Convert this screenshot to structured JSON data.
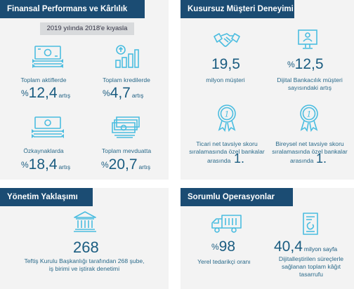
{
  "finance": {
    "title": "Finansal Performans ve Kârlılık",
    "compare_note": "2019 yılında 2018'e kıyasla",
    "items": [
      {
        "label": "Toplam aktiflerde",
        "prefix": "%",
        "value": "12,4",
        "suffix": "artış",
        "icon": "banknotes-icon"
      },
      {
        "label": "Toplam kredilerde",
        "prefix": "%",
        "value": "4,7",
        "suffix": "artış",
        "icon": "growth-chart-icon"
      },
      {
        "label": "Özkaynaklarda",
        "prefix": "%",
        "value": "18,4",
        "suffix": "artış",
        "icon": "money-stack-icon"
      },
      {
        "label": "Toplam mevduatta",
        "prefix": "%",
        "value": "20,7",
        "suffix": "artış",
        "icon": "cash-bundle-icon"
      }
    ]
  },
  "customer": {
    "title": "Kusursuz Müşteri Deneyimi",
    "customers_value": "19,5",
    "customers_label": "milyon müşteri",
    "digital_prefix": "%",
    "digital_value": "12,5",
    "digital_label_1": "Dijital Bankacılık müşteri",
    "digital_label_2": "sayısındaki artış",
    "nps_commercial": [
      "Ticari net tavsiye skoru",
      "sıralamasında özel bankalar",
      "arasında"
    ],
    "nps_commercial_rank": "1.",
    "nps_retail": [
      "Bireysel net tavsiye skoru",
      "sıralamasında özel bankalar",
      "arasında"
    ],
    "nps_retail_rank": "1.",
    "award_digit": "1"
  },
  "management": {
    "title": "Yönetim Yaklaşımı",
    "value": "268",
    "desc_1": "Teftiş Kurulu Başkanlığı tarafından 268 şube,",
    "desc_2": "iş birimi ve iştirak denetimi"
  },
  "operations": {
    "title": "Sorumlu Operasyonlar",
    "supplier_prefix": "%",
    "supplier_value": "98",
    "supplier_label": "Yerel tedarikçi oranı",
    "paper_value": "40,4",
    "paper_unit": "milyon sayfa",
    "paper_label_1": "Dijitalleştirilen süreçlerle",
    "paper_label_2": "sağlanan toplam kâğıt",
    "paper_label_3": "tasarrufu"
  },
  "colors": {
    "header": "#1b4c73",
    "panel": "#f3f3f3",
    "icon": "#4bbde0",
    "text": "#1a5c80"
  }
}
